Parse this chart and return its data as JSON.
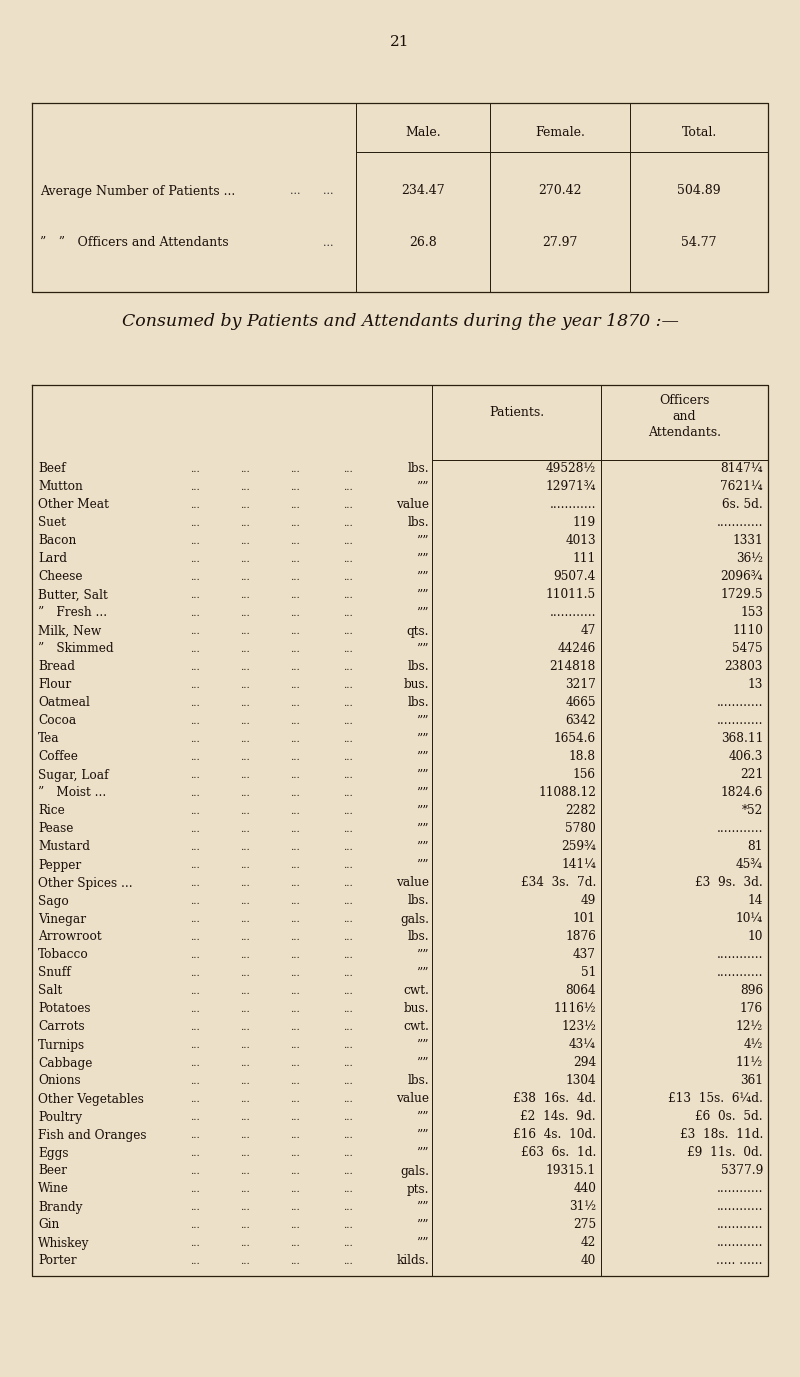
{
  "page_number": "21",
  "bg_color": "#ede0c8",
  "section_title": "Consumed by Patients and Attendants during the year 1870 :—",
  "table2_rows": [
    [
      "Beef",
      "...",
      "...",
      "...",
      "...",
      "lbs.",
      "49528½",
      "8147¼"
    ],
    [
      "Mutton",
      "...",
      "...",
      "...",
      "...",
      "””",
      "12971¾",
      "7621¼"
    ],
    [
      "Other Meat",
      "...",
      "...",
      "...",
      "...",
      "value",
      "............",
      "6s. 5d."
    ],
    [
      "Suet",
      "...",
      "...",
      "...",
      "...",
      "lbs.",
      "119",
      "............"
    ],
    [
      "Bacon",
      "...",
      "...",
      "...",
      "...",
      "””",
      "4013",
      "1331"
    ],
    [
      "Lard",
      "...",
      "...",
      "...",
      "...",
      "””",
      "111",
      "36½"
    ],
    [
      "Cheese",
      "...",
      "...",
      "...",
      "...",
      "””",
      "9507.4",
      "2096¾"
    ],
    [
      "Butter, Salt",
      "...",
      "...",
      "...",
      "...",
      "””",
      "11011.5",
      "1729.5"
    ],
    [
      "” Fresh ...",
      "...",
      "...",
      "...",
      "...",
      "””",
      "............",
      "153"
    ],
    [
      "Milk, New",
      "...",
      "...",
      "...",
      "...",
      "qts.",
      "47",
      "1110"
    ],
    [
      "” Skimmed",
      "...",
      "...",
      "...",
      "...",
      "””",
      "44246",
      "5475"
    ],
    [
      "Bread",
      "...",
      "...",
      "...",
      "...",
      "lbs.",
      "214818",
      "23803"
    ],
    [
      "Flour",
      "...",
      "...",
      "...",
      "...",
      "bus.",
      "3217",
      "13"
    ],
    [
      "Oatmeal",
      "...",
      "...",
      "...",
      "...",
      "lbs.",
      "4665",
      "............"
    ],
    [
      "Cocoa",
      "...",
      "...",
      "...",
      "...",
      "””",
      "6342",
      "............"
    ],
    [
      "Tea",
      "...",
      "...",
      "...",
      "...",
      "””",
      "1654.6",
      "368.11"
    ],
    [
      "Coffee",
      "...",
      "...",
      "...",
      "...",
      "””",
      "18.8",
      "406.3"
    ],
    [
      "Sugar, Loaf",
      "...",
      "...",
      "...",
      "...",
      "””",
      "156",
      "221"
    ],
    [
      "” Moist ...",
      "...",
      "...",
      "...",
      "...",
      "””",
      "11088.12",
      "1824.6"
    ],
    [
      "Rice",
      "...",
      "...",
      "...",
      "...",
      "””",
      "2282",
      "*52"
    ],
    [
      "Pease",
      "...",
      "...",
      "...",
      "...",
      "””",
      "5780",
      "............"
    ],
    [
      "Mustard",
      "...",
      "...",
      "...",
      "...",
      "””",
      "259¾",
      "81"
    ],
    [
      "Pepper",
      "...",
      "...",
      "...",
      "...",
      "””",
      "141¼",
      "45¾"
    ],
    [
      "Other Spices ...",
      "...",
      "...",
      "...",
      "...",
      "value",
      "£34  3s.  7d.",
      "£3  9s.  3d."
    ],
    [
      "Sago",
      "...",
      "...",
      "...",
      "...",
      "lbs.",
      "49",
      "14"
    ],
    [
      "Vinegar",
      "...",
      "...",
      "...",
      "...",
      "gals.",
      "101",
      "10¼"
    ],
    [
      "Arrowroot",
      "...",
      "...",
      "...",
      "...",
      "lbs.",
      "1876",
      "10"
    ],
    [
      "Tobacco",
      "...",
      "...",
      "...",
      "...",
      "””",
      "437",
      "............"
    ],
    [
      "Snuff",
      "...",
      "...",
      "...",
      "...",
      "””",
      "51",
      "............"
    ],
    [
      "Salt",
      "...",
      "...",
      "...",
      "...",
      "cwt.",
      "8064",
      "896"
    ],
    [
      "Potatoes",
      "...",
      "...",
      "...",
      "...",
      "bus.",
      "1116½",
      "176"
    ],
    [
      "Carrots",
      "...",
      "...",
      "...",
      "...",
      "cwt.",
      "123½",
      "12½"
    ],
    [
      "Turnips",
      "...",
      "...",
      "...",
      "...",
      "””",
      "43¼",
      "4½"
    ],
    [
      "Cabbage",
      "...",
      "...",
      "...",
      "...",
      "””",
      "294",
      "11½"
    ],
    [
      "Onions",
      "...",
      "...",
      "...",
      "...",
      "lbs.",
      "1304",
      "361"
    ],
    [
      "Other Vegetables",
      "...",
      "...",
      "...",
      "...",
      "value",
      "£38  16s.  4d.",
      "£13  15s.  6¼d."
    ],
    [
      "Poultry",
      "...",
      "...",
      "...",
      "...",
      "””",
      "£2  14s.  9d.",
      "£6  0s.  5d."
    ],
    [
      "Fish and Oranges",
      "...",
      "...",
      "...",
      "...",
      "””",
      "£16  4s.  10d.",
      "£3  18s.  11d."
    ],
    [
      "Eggs",
      "...",
      "...",
      "...",
      "...",
      "””",
      "£63  6s.  1d.",
      "£9  11s.  0d."
    ],
    [
      "Beer",
      "...",
      "...",
      "...",
      "...",
      "gals.",
      "19315.1",
      "5377.9"
    ],
    [
      "Wine",
      "...",
      "...",
      "...",
      "...",
      "pts.",
      "440",
      "............"
    ],
    [
      "Brandy",
      "...",
      "...",
      "...",
      "...",
      "””",
      "31½",
      "............"
    ],
    [
      "Gin",
      "...",
      "...",
      "...",
      "...",
      "””",
      "275",
      "............"
    ],
    [
      "Whiskey",
      "...",
      "...",
      "...",
      "...",
      "””",
      "42",
      "............"
    ],
    [
      "Porter",
      "...",
      "...",
      "...",
      "...",
      "kilds.",
      "40",
      "..... ......"
    ]
  ]
}
